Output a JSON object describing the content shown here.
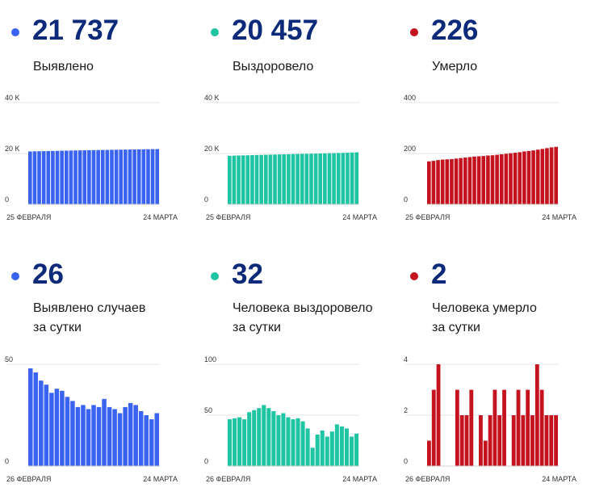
{
  "colors": {
    "blue": "#3a63f0",
    "green": "#1fc5a3",
    "red": "#c4131f",
    "number": "#0d2a7a"
  },
  "panels": [
    {
      "id": "cases-total",
      "color": "#3a63f0",
      "number": "21 737",
      "label_lines": [
        "Выявлено"
      ]
    },
    {
      "id": "recovered-total",
      "color": "#1fc5a3",
      "number": "20 457",
      "label_lines": [
        "Выздоровело"
      ]
    },
    {
      "id": "deaths-total",
      "color": "#c4131f",
      "number": "226",
      "label_lines": [
        "Умерло"
      ]
    },
    {
      "id": "cases-daily",
      "color": "#3a63f0",
      "number": "26",
      "label_lines": [
        "Выявлено случаев",
        "за сутки"
      ]
    },
    {
      "id": "recovered-daily",
      "color": "#1fc5a3",
      "number": "32",
      "label_lines": [
        "Человека выздоровело",
        "за сутки"
      ]
    },
    {
      "id": "deaths-daily",
      "color": "#c4131f",
      "number": "2",
      "label_lines": [
        "Человека умерло",
        "за сутки"
      ]
    }
  ],
  "chart_data": [
    {
      "type": "bar",
      "title": "Выявлено",
      "x_start_label": "25 ФЕВРАЛЯ",
      "x_end_label": "24 МАРТА",
      "yticks": [
        0,
        20000,
        40000
      ],
      "ytick_labels": [
        "0",
        "20 K",
        "40 K"
      ],
      "ylim": [
        0,
        40000
      ],
      "grid": true,
      "values": [
        20800,
        20840,
        20880,
        20920,
        20960,
        21000,
        21040,
        21080,
        21120,
        21160,
        21200,
        21230,
        21260,
        21290,
        21320,
        21350,
        21380,
        21410,
        21440,
        21470,
        21500,
        21530,
        21560,
        21590,
        21620,
        21650,
        21680,
        21711,
        21737
      ]
    },
    {
      "type": "bar",
      "title": "Выздоровело",
      "x_start_label": "25 ФЕВРАЛЯ",
      "x_end_label": "24 МАРТА",
      "yticks": [
        0,
        20000,
        40000
      ],
      "ytick_labels": [
        "0",
        "20 K",
        "40 K"
      ],
      "ylim": [
        0,
        40000
      ],
      "grid": true,
      "values": [
        19100,
        19150,
        19200,
        19250,
        19300,
        19350,
        19400,
        19450,
        19500,
        19550,
        19600,
        19640,
        19680,
        19720,
        19760,
        19800,
        19840,
        19880,
        19920,
        19960,
        20000,
        20050,
        20100,
        20150,
        20200,
        20250,
        20300,
        20380,
        20457
      ]
    },
    {
      "type": "bar",
      "title": "Умерло",
      "x_start_label": "25 ФЕВРАЛЯ",
      "x_end_label": "24 МАРТА",
      "yticks": [
        0,
        200,
        400
      ],
      "ytick_labels": [
        "0",
        "200",
        "400"
      ],
      "ylim": [
        0,
        400
      ],
      "grid": true,
      "values": [
        169,
        171,
        174,
        176,
        177,
        178,
        180,
        182,
        184,
        186,
        188,
        189,
        190,
        192,
        193,
        195,
        197,
        199,
        201,
        203,
        205,
        208,
        210,
        212,
        215,
        218,
        221,
        224,
        226
      ]
    },
    {
      "type": "bar",
      "title": "Выявлено случаев за сутки",
      "x_start_label": "26 ФЕВРАЛЯ",
      "x_end_label": "24 МАРТА",
      "yticks": [
        0,
        50
      ],
      "ytick_labels": [
        "0",
        "50"
      ],
      "ylim": [
        0,
        50
      ],
      "grid": true,
      "values": [
        48,
        46,
        42,
        40,
        36,
        38,
        37,
        34,
        32,
        29,
        30,
        28,
        30,
        29,
        33,
        29,
        28,
        26,
        29,
        31,
        30,
        27,
        25,
        23,
        26
      ]
    },
    {
      "type": "bar",
      "title": "Человека выздоровело за сутки",
      "x_start_label": "26 ФЕВРАЛЯ",
      "x_end_label": "24 МАРТА",
      "yticks": [
        0,
        50,
        100
      ],
      "ytick_labels": [
        "0",
        "50",
        "100"
      ],
      "ylim": [
        0,
        100
      ],
      "grid": true,
      "values": [
        46,
        47,
        48,
        46,
        53,
        55,
        57,
        60,
        57,
        54,
        50,
        52,
        48,
        46,
        47,
        44,
        37,
        18,
        31,
        35,
        29,
        34,
        41,
        39,
        37,
        29,
        32
      ]
    },
    {
      "type": "bar",
      "title": "Человека умерло за сутки",
      "x_start_label": "26 ФЕВРАЛЯ",
      "x_end_label": "24 МАРТА",
      "yticks": [
        0,
        2,
        4
      ],
      "ytick_labels": [
        "0",
        "2",
        "4"
      ],
      "ylim": [
        0,
        4
      ],
      "grid": true,
      "values": [
        1,
        3,
        4,
        0,
        0,
        0,
        3,
        2,
        2,
        3,
        0,
        2,
        1,
        2,
        3,
        2,
        3,
        0,
        2,
        3,
        2,
        3,
        2,
        4,
        3,
        2,
        2,
        2
      ]
    }
  ]
}
